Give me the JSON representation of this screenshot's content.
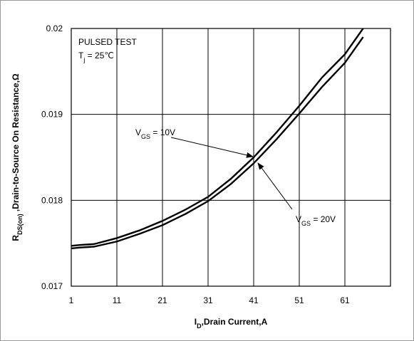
{
  "chart_data": {
    "type": "line",
    "annotations": {
      "test": "PULSED TEST",
      "tj": {
        "base": "T",
        "sub": "j",
        "rest": " = 25℃"
      }
    },
    "x_label": {
      "base": "I",
      "sub": "D",
      "rest": ",Drain Current,A"
    },
    "y_label": {
      "base": "R",
      "sub": "DS(on)",
      "rest": " ,Drain-to-Source On Resistance,Ω"
    },
    "x": [
      1,
      3,
      6,
      11,
      16,
      21,
      26,
      31,
      36,
      41,
      46,
      51,
      56,
      61,
      65
    ],
    "series": [
      {
        "label": {
          "base": "V",
          "sub": "GS",
          "rest": " = 10V"
        },
        "color": "#000000",
        "values": [
          0.01747,
          0.01748,
          0.01749,
          0.01756,
          0.01765,
          0.01776,
          0.01789,
          0.01804,
          0.01825,
          0.0185,
          0.01879,
          0.0191,
          0.01943,
          0.0197,
          0.02
        ]
      },
      {
        "label": {
          "base": "V",
          "sub": "GS",
          "rest": " = 20V"
        },
        "color": "#000000",
        "values": [
          0.01744,
          0.01745,
          0.01746,
          0.01752,
          0.01761,
          0.01771,
          0.01784,
          0.01799,
          0.01819,
          0.01843,
          0.01871,
          0.01901,
          0.01932,
          0.0196,
          0.0199
        ]
      }
    ],
    "xlim": [
      1,
      71
    ],
    "xticks": [
      1,
      11,
      21,
      31,
      41,
      51,
      61
    ],
    "ylim": [
      0.017,
      0.02
    ],
    "yticks": [
      0.017,
      0.018,
      0.019,
      0.02
    ],
    "grid": true
  }
}
